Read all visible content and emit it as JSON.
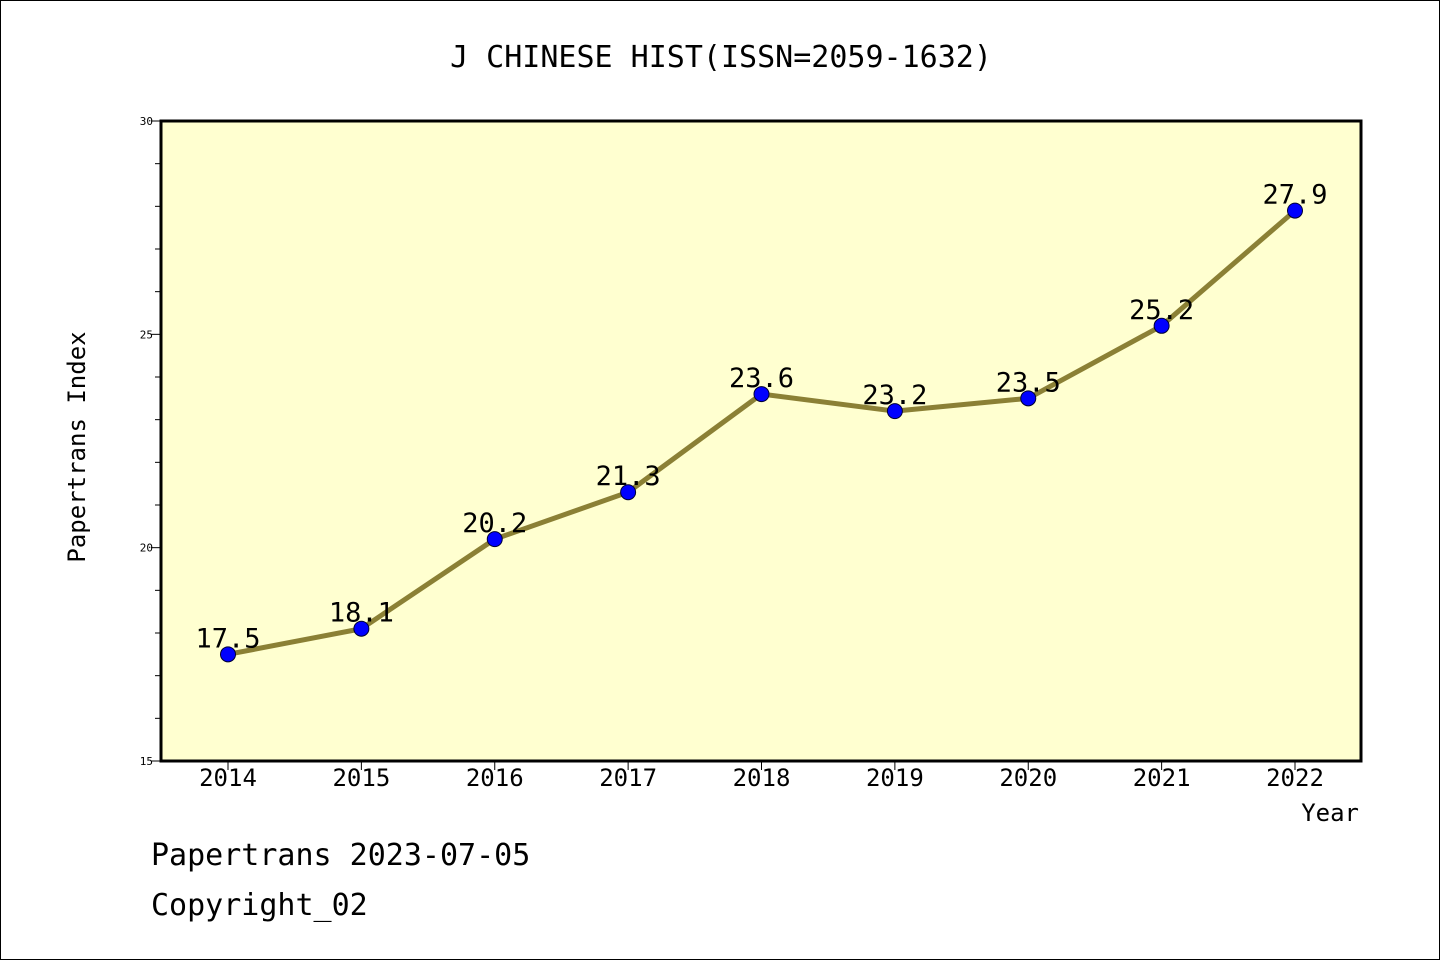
{
  "chart_data": {
    "type": "line",
    "title": "J CHINESE HIST(ISSN=2059-1632)",
    "xlabel": "Year",
    "ylabel": "Papertrans Index",
    "categories": [
      "2014",
      "2015",
      "2016",
      "2017",
      "2018",
      "2019",
      "2020",
      "2021",
      "2022"
    ],
    "values": [
      17.5,
      18.1,
      20.2,
      21.3,
      23.6,
      23.2,
      23.5,
      25.2,
      27.9
    ],
    "data_labels": [
      "17.5",
      "18.1",
      "20.2",
      "21.3",
      "23.6",
      "23.2",
      "23.5",
      "25.2",
      "27.9"
    ],
    "ylim": [
      15,
      30
    ],
    "y_ticks": [
      "15",
      "20",
      "25",
      "30"
    ],
    "grid": false,
    "legend": "none",
    "colors": {
      "plot_background": "#ffffd0",
      "line": "#8b8035",
      "marker": "#0000ff"
    }
  },
  "footer": {
    "line1": "Papertrans 2023-07-05",
    "line2": "Copyright_02"
  }
}
